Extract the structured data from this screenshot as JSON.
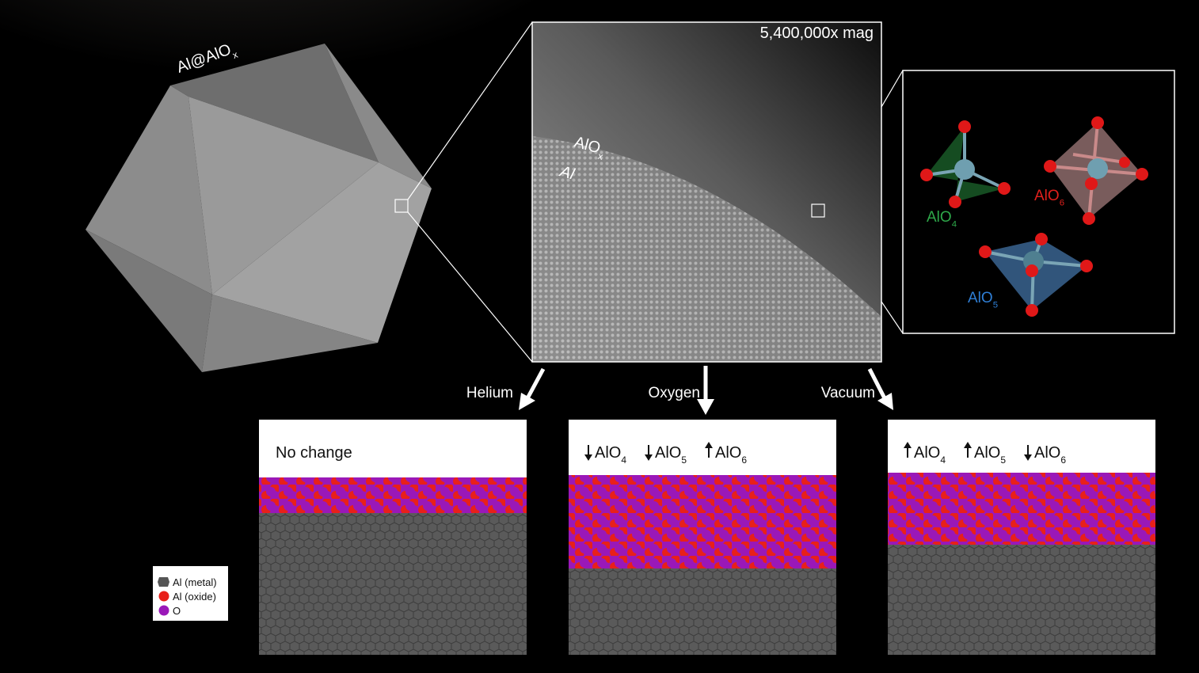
{
  "particle_label": {
    "text": "Al@AlO",
    "sub": "x"
  },
  "micrograph": {
    "magnification": "5,400,000x mag",
    "oxide_label": {
      "text": "AlO",
      "sub": "x"
    },
    "metal_label": "Al"
  },
  "polyhedra": [
    {
      "text": "AlO",
      "sub": "4",
      "color": "#2ea84a"
    },
    {
      "text": "AlO",
      "sub": "6",
      "color": "#e0201c"
    },
    {
      "text": "AlO",
      "sub": "5",
      "color": "#2f7fd6"
    }
  ],
  "conditions": [
    {
      "gas": "Helium",
      "note": "No change"
    },
    {
      "gas": "Oxygen",
      "changes": [
        {
          "direction": "down",
          "text": "AlO",
          "sub": "4"
        },
        {
          "direction": "down",
          "text": "AlO",
          "sub": "5"
        },
        {
          "direction": "up",
          "text": "AlO",
          "sub": "6"
        }
      ]
    },
    {
      "gas": "Vacuum",
      "changes": [
        {
          "direction": "up",
          "text": "AlO",
          "sub": "4"
        },
        {
          "direction": "up",
          "text": "AlO",
          "sub": "5"
        },
        {
          "direction": "down",
          "text": "AlO",
          "sub": "6"
        }
      ]
    }
  ],
  "legend": [
    {
      "label": "Al (metal)",
      "color": "#555555"
    },
    {
      "label": "Al (oxide)",
      "color": "#e8201a"
    },
    {
      "label": "O",
      "color": "#9a18b8"
    }
  ]
}
